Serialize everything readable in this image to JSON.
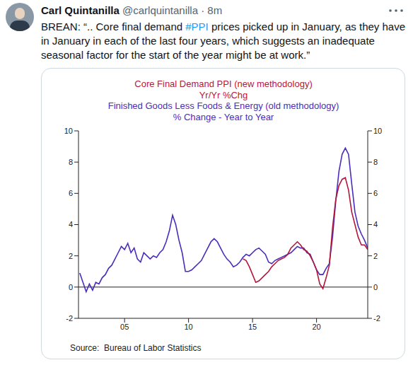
{
  "tweet": {
    "name": "Carl Quintanilla",
    "handle": "@carlquintanilla",
    "separator": "·",
    "time": "8m",
    "text_parts": [
      {
        "text": "BREAN: “.. Core final demand "
      },
      {
        "text": "#PPI",
        "link": true
      },
      {
        "text": " prices picked up in January, as they have in January in each of the last four years, which suggests an inadequate seasonal factor for the start of the year might be at work.”"
      }
    ]
  },
  "chart_data": {
    "type": "line",
    "legend": "top",
    "grid": false,
    "source": "Source:  Bureau of Labor Statistics",
    "xlim": [
      2001.4,
      2024.0
    ],
    "xticks": [
      {
        "value": 2005,
        "label": "05"
      },
      {
        "value": 2010,
        "label": "10"
      },
      {
        "value": 2015,
        "label": "15"
      },
      {
        "value": 2020,
        "label": "20"
      }
    ],
    "ylim": [
      -2,
      10
    ],
    "yticks": [
      -2,
      0,
      2,
      4,
      6,
      8,
      10
    ],
    "y2lim": [
      -2,
      10
    ],
    "y2ticks": [
      -2,
      0,
      2,
      4,
      6,
      8,
      10
    ],
    "reference_line": 0,
    "x": [
      2001.5,
      2001.75,
      2002.0,
      2002.25,
      2002.5,
      2002.75,
      2003.0,
      2003.25,
      2003.5,
      2003.75,
      2004.0,
      2004.25,
      2004.5,
      2004.75,
      2005.0,
      2005.25,
      2005.5,
      2005.75,
      2006.0,
      2006.25,
      2006.5,
      2006.75,
      2007.0,
      2007.25,
      2007.5,
      2007.75,
      2008.0,
      2008.25,
      2008.5,
      2008.75,
      2009.0,
      2009.25,
      2009.5,
      2009.75,
      2010.0,
      2010.25,
      2010.5,
      2010.75,
      2011.0,
      2011.25,
      2011.5,
      2011.75,
      2012.0,
      2012.25,
      2012.5,
      2012.75,
      2013.0,
      2013.25,
      2013.5,
      2013.75,
      2014.0,
      2014.25,
      2014.5,
      2014.75,
      2015.0,
      2015.25,
      2015.5,
      2015.75,
      2016.0,
      2016.25,
      2016.5,
      2016.75,
      2017.0,
      2017.25,
      2017.5,
      2017.75,
      2018.0,
      2018.25,
      2018.5,
      2018.75,
      2019.0,
      2019.25,
      2019.5,
      2019.75,
      2020.0,
      2020.25,
      2020.5,
      2020.75,
      2021.0,
      2021.25,
      2021.5,
      2021.75,
      2022.0,
      2022.25,
      2022.5,
      2022.75,
      2023.0,
      2023.25,
      2023.5,
      2023.75,
      2024.0
    ],
    "series": [
      {
        "name": "Core Final Demand PPI (new methodology)",
        "units": "Yr/Yr %Chg",
        "color": "#b3173d",
        "values": [
          null,
          null,
          null,
          null,
          null,
          null,
          null,
          null,
          null,
          null,
          null,
          null,
          null,
          null,
          null,
          null,
          null,
          null,
          null,
          null,
          null,
          null,
          null,
          null,
          null,
          null,
          null,
          null,
          null,
          null,
          null,
          null,
          null,
          null,
          null,
          null,
          null,
          null,
          null,
          null,
          null,
          null,
          null,
          null,
          null,
          null,
          null,
          null,
          null,
          null,
          null,
          1.8,
          1.7,
          1.3,
          0.8,
          0.3,
          0.4,
          0.6,
          0.8,
          1.0,
          1.3,
          1.5,
          1.7,
          1.8,
          1.9,
          2.1,
          2.5,
          2.7,
          2.9,
          2.7,
          2.4,
          2.3,
          2.0,
          1.6,
          1.1,
          0.2,
          -0.1,
          0.6,
          1.4,
          3.8,
          5.6,
          6.5,
          6.9,
          7.0,
          6.2,
          4.8,
          4.0,
          3.2,
          2.7,
          2.7,
          2.4
        ]
      },
      {
        "name": "Finished Goods Less Foods & Energy (old methodology)",
        "units": "% Change - Year to Year",
        "color": "#4b2dbd",
        "values": [
          0.9,
          0.3,
          -0.3,
          0.2,
          -0.2,
          0.3,
          0.2,
          0.6,
          0.8,
          1.2,
          1.4,
          1.8,
          2.2,
          2.6,
          2.4,
          2.8,
          2.2,
          2.5,
          1.8,
          1.6,
          2.2,
          2.0,
          1.8,
          2.0,
          1.9,
          2.2,
          2.4,
          2.9,
          3.6,
          4.6,
          4.0,
          3.0,
          2.2,
          1.0,
          1.0,
          1.1,
          1.3,
          1.5,
          1.7,
          2.1,
          2.5,
          2.9,
          3.1,
          2.9,
          2.5,
          2.1,
          1.8,
          1.6,
          1.3,
          1.4,
          1.6,
          1.9,
          2.1,
          2.0,
          2.2,
          2.4,
          2.5,
          2.3,
          2.1,
          1.6,
          1.5,
          1.7,
          1.8,
          1.9,
          2.0,
          2.1,
          2.2,
          2.4,
          2.6,
          2.5,
          2.5,
          2.2,
          2.1,
          1.6,
          1.1,
          0.8,
          0.8,
          1.2,
          1.5,
          3.2,
          5.5,
          7.4,
          8.5,
          8.9,
          8.5,
          6.6,
          4.8,
          3.9,
          3.4,
          3.0,
          2.5
        ]
      }
    ]
  }
}
